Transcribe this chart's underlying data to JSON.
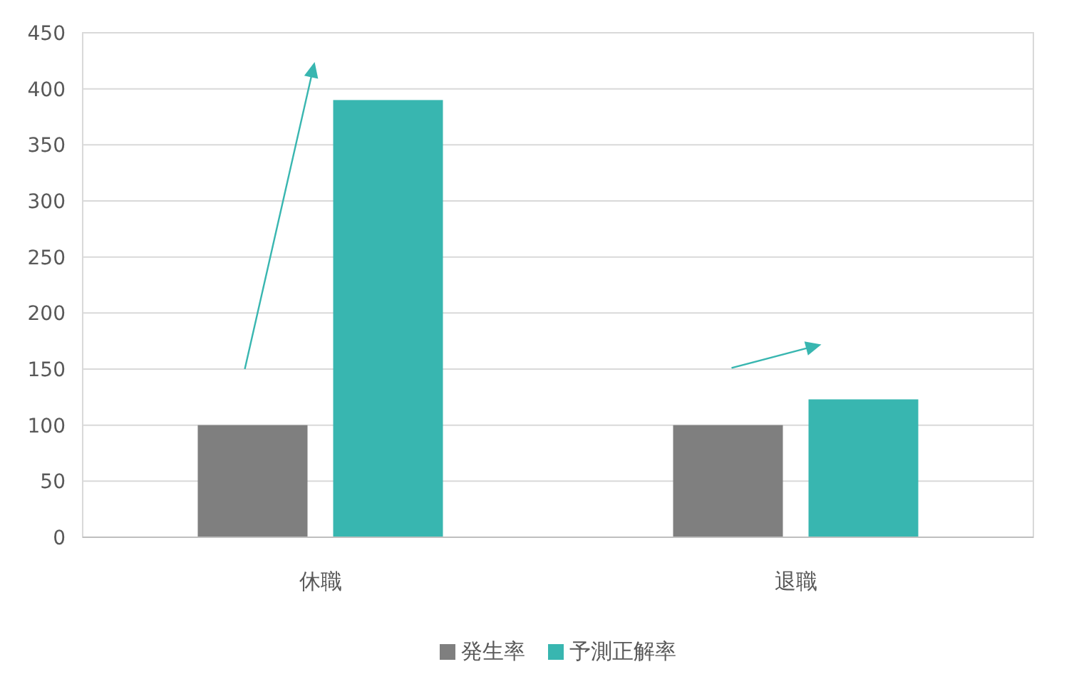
{
  "chart_data": {
    "type": "bar",
    "categories": [
      "休職",
      "退職"
    ],
    "series": [
      {
        "name": "発生率",
        "color": "#7f7f7f",
        "values": [
          100,
          100
        ]
      },
      {
        "name": "予測正解率",
        "color": "#38b6b0",
        "values": [
          390,
          123
        ]
      }
    ],
    "ylim": [
      0,
      450
    ],
    "yticks": [
      0,
      50,
      100,
      150,
      200,
      250,
      300,
      350,
      400,
      450
    ],
    "grid": "y",
    "legend": "bottom"
  }
}
